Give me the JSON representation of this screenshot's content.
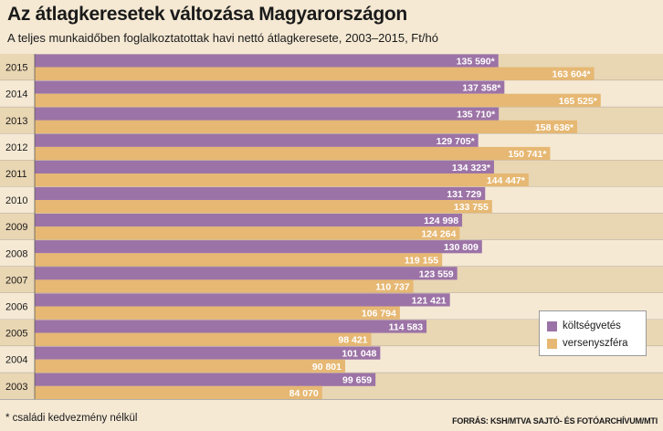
{
  "title": "Az átlagkeresetek változása Magyarországon",
  "subtitle": "A teljes munkaidőben foglalkoztatottak havi nettó átlagkeresete, 2003–2015, Ft/hó",
  "footnote": "* családi kedvezmény nélkül",
  "source": "FORRÁS: KSH/MTVA SAJTÓ- ÉS FOTÓARCHÍVUM/MTI",
  "colors": {
    "kolts": "#9c73a6",
    "verseny": "#e6b873",
    "row_dark": "#e9d6b3",
    "row_light": "#f5e9d4",
    "row_line": "#8a8a8a"
  },
  "chart_data": {
    "type": "bar",
    "orientation": "horizontal",
    "title": "Az átlagkeresetek változása Magyarországon",
    "subtitle": "A teljes munkaidőben foglalkoztatottak havi nettó átlagkeresete, 2003–2015, Ft/hó",
    "categories": [
      "2015",
      "2014",
      "2013",
      "2012",
      "2011",
      "2010",
      "2009",
      "2008",
      "2007",
      "2006",
      "2005",
      "2004",
      "2003"
    ],
    "series": [
      {
        "name": "költségvetés",
        "values": [
          135590,
          137358,
          135710,
          129705,
          134323,
          131729,
          124998,
          130809,
          123559,
          121421,
          114583,
          101048,
          99659
        ],
        "labels": [
          "135 590*",
          "137 358*",
          "135 710*",
          "129 705*",
          "134 323*",
          "131 729",
          "124 998",
          "130 809",
          "123 559",
          "121 421",
          "114 583",
          "101 048",
          "99 659"
        ]
      },
      {
        "name": "versenyszféra",
        "values": [
          163604,
          165525,
          158636,
          150741,
          144447,
          133755,
          124264,
          119155,
          110737,
          106794,
          98421,
          90801,
          84070
        ],
        "labels": [
          "163 604*",
          "165 525*",
          "158 636*",
          "150 741*",
          "144 447*",
          "133 755",
          "124 264",
          "119 155",
          "110 737",
          "106 794",
          "98 421",
          "90 801",
          "84 070"
        ]
      }
    ],
    "legend_position": "bottom-right",
    "grid": false
  }
}
